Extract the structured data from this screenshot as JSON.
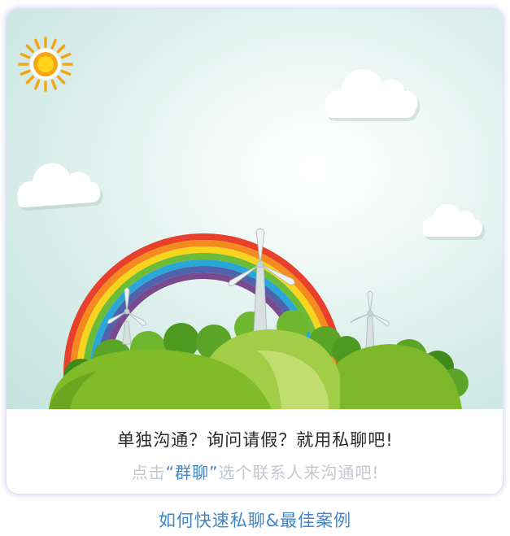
{
  "card": {
    "title": "单独沟通？询问请假？就用私聊吧!",
    "subtitle_prefix": "点击",
    "subtitle_highlight": "“群聊”",
    "subtitle_suffix": "选个联系人来沟通吧!"
  },
  "link": {
    "label": "如何快速私聊&最佳案例"
  },
  "colors": {
    "accent": "#3f86c9",
    "title_text": "#2a2a2a",
    "subtitle_text": "#c4c8ce",
    "sky": "#dcefeb",
    "hill_green": "#7cb82a"
  },
  "illustration": {
    "icons": [
      "sun-icon",
      "cloud-icon",
      "rainbow",
      "wind-turbine-icon",
      "green-hills"
    ]
  }
}
